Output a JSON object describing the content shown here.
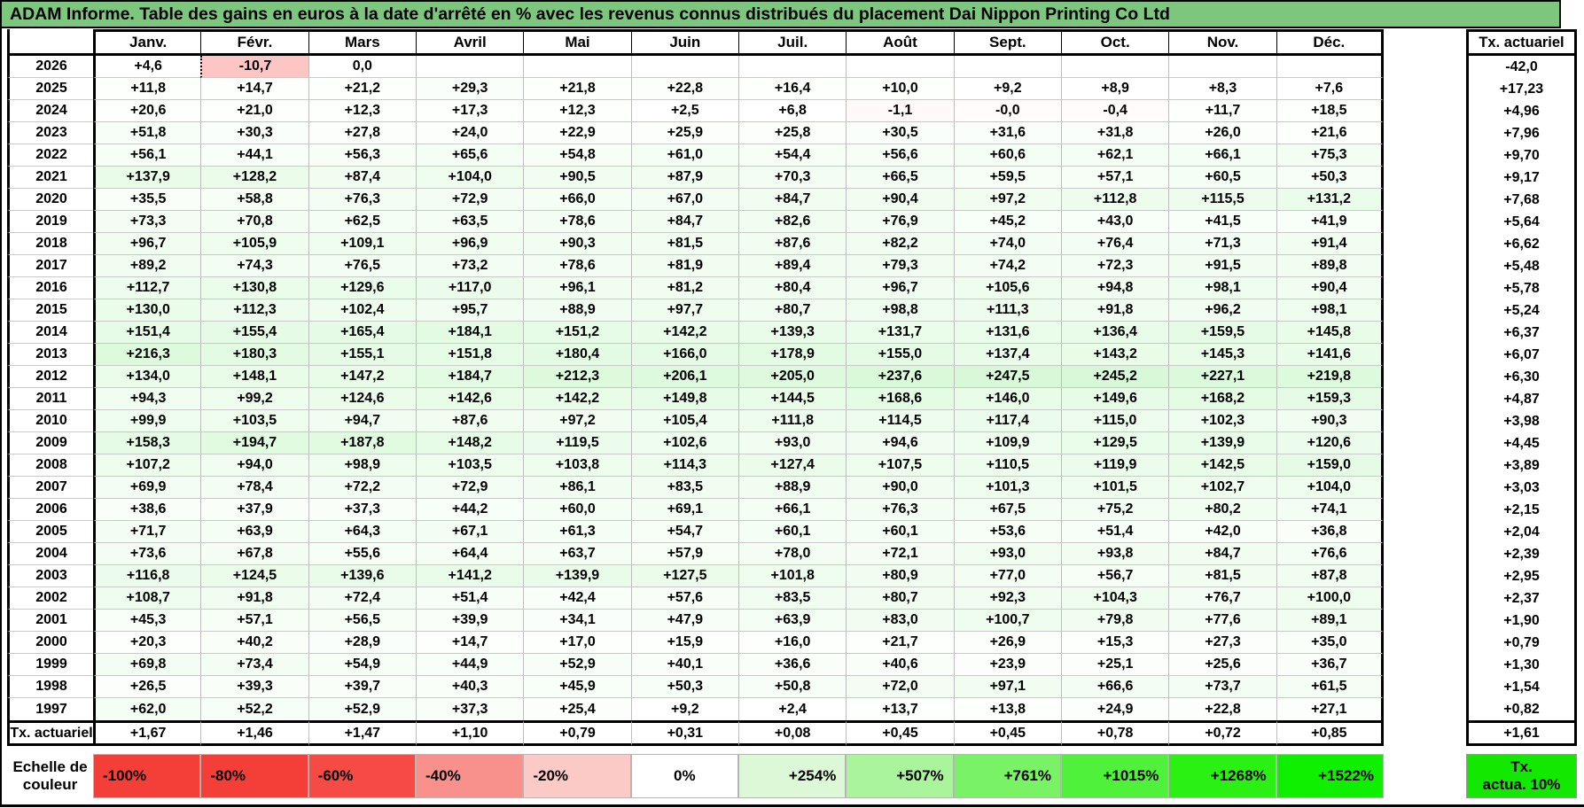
{
  "colors": {
    "title_bg": "#7dc67e",
    "thin_grid": "#c9c9c9"
  },
  "chart_data": {
    "type": "heatmap",
    "title": "ADAM Informe. Table des gains en euros à la date d'arrêté en % avec les revenus connus distribués du placement Dai Nippon Printing Co Ltd",
    "columns": [
      "Janv.",
      "Févr.",
      "Mars",
      "Avril",
      "Mai",
      "Juin",
      "Juil.",
      "Août",
      "Sept.",
      "Oct.",
      "Nov.",
      "Déc."
    ],
    "row_totals_label": "Tx. actuariel",
    "column_footer_label": "Tx. actuariel",
    "rows": [
      {
        "year": "2026",
        "values": [
          "+4,6",
          "-10,7",
          "0,0",
          "",
          "",
          "",
          "",
          "",
          "",
          "",
          "",
          ""
        ],
        "tx": "-42,0"
      },
      {
        "year": "2025",
        "values": [
          "+11,8",
          "+14,7",
          "+21,2",
          "+29,3",
          "+21,8",
          "+22,8",
          "+16,4",
          "+10,0",
          "+9,2",
          "+8,9",
          "+8,3",
          "+7,6"
        ],
        "tx": "+17,23"
      },
      {
        "year": "2024",
        "values": [
          "+20,6",
          "+21,0",
          "+12,3",
          "+17,3",
          "+12,3",
          "+2,5",
          "+6,8",
          "-1,1",
          "-0,0",
          "-0,4",
          "+11,7",
          "+18,5"
        ],
        "tx": "+4,96"
      },
      {
        "year": "2023",
        "values": [
          "+51,8",
          "+30,3",
          "+27,8",
          "+24,0",
          "+22,9",
          "+25,9",
          "+25,8",
          "+30,5",
          "+31,6",
          "+31,8",
          "+26,0",
          "+21,6"
        ],
        "tx": "+7,96"
      },
      {
        "year": "2022",
        "values": [
          "+56,1",
          "+44,1",
          "+56,3",
          "+65,6",
          "+54,8",
          "+61,0",
          "+54,4",
          "+56,6",
          "+60,6",
          "+62,1",
          "+66,1",
          "+75,3"
        ],
        "tx": "+9,70"
      },
      {
        "year": "2021",
        "values": [
          "+137,9",
          "+128,2",
          "+87,4",
          "+104,0",
          "+90,5",
          "+87,9",
          "+70,3",
          "+66,5",
          "+59,5",
          "+57,1",
          "+60,5",
          "+50,3"
        ],
        "tx": "+9,17"
      },
      {
        "year": "2020",
        "values": [
          "+35,5",
          "+58,8",
          "+76,3",
          "+72,9",
          "+66,0",
          "+67,0",
          "+84,7",
          "+90,4",
          "+97,2",
          "+112,8",
          "+115,5",
          "+131,2"
        ],
        "tx": "+7,68"
      },
      {
        "year": "2019",
        "values": [
          "+73,3",
          "+70,8",
          "+62,5",
          "+63,5",
          "+78,6",
          "+84,7",
          "+82,6",
          "+76,9",
          "+45,2",
          "+43,0",
          "+41,5",
          "+41,9"
        ],
        "tx": "+5,64"
      },
      {
        "year": "2018",
        "values": [
          "+96,7",
          "+105,9",
          "+109,1",
          "+96,9",
          "+90,3",
          "+81,5",
          "+87,6",
          "+82,2",
          "+74,0",
          "+76,4",
          "+71,3",
          "+91,4"
        ],
        "tx": "+6,62"
      },
      {
        "year": "2017",
        "values": [
          "+89,2",
          "+74,3",
          "+76,5",
          "+73,2",
          "+78,6",
          "+81,9",
          "+89,4",
          "+79,3",
          "+74,2",
          "+72,3",
          "+91,5",
          "+89,8"
        ],
        "tx": "+5,48"
      },
      {
        "year": "2016",
        "values": [
          "+112,7",
          "+130,8",
          "+129,6",
          "+117,0",
          "+96,1",
          "+81,2",
          "+80,4",
          "+96,7",
          "+105,6",
          "+94,8",
          "+98,1",
          "+90,4"
        ],
        "tx": "+5,78"
      },
      {
        "year": "2015",
        "values": [
          "+130,0",
          "+112,3",
          "+102,4",
          "+95,7",
          "+88,9",
          "+97,7",
          "+80,7",
          "+98,8",
          "+111,3",
          "+91,8",
          "+96,2",
          "+98,1"
        ],
        "tx": "+5,24"
      },
      {
        "year": "2014",
        "values": [
          "+151,4",
          "+155,4",
          "+165,4",
          "+184,1",
          "+151,2",
          "+142,2",
          "+139,3",
          "+131,7",
          "+131,6",
          "+136,4",
          "+159,5",
          "+145,8"
        ],
        "tx": "+6,37"
      },
      {
        "year": "2013",
        "values": [
          "+216,3",
          "+180,3",
          "+155,1",
          "+151,8",
          "+180,4",
          "+166,0",
          "+178,9",
          "+155,0",
          "+137,4",
          "+143,2",
          "+145,3",
          "+141,6"
        ],
        "tx": "+6,07"
      },
      {
        "year": "2012",
        "values": [
          "+134,0",
          "+148,1",
          "+147,2",
          "+184,7",
          "+212,3",
          "+206,1",
          "+205,0",
          "+237,6",
          "+247,5",
          "+245,2",
          "+227,1",
          "+219,8"
        ],
        "tx": "+6,30"
      },
      {
        "year": "2011",
        "values": [
          "+94,3",
          "+99,2",
          "+124,6",
          "+142,6",
          "+142,2",
          "+149,8",
          "+144,5",
          "+168,6",
          "+146,0",
          "+149,6",
          "+168,2",
          "+159,3"
        ],
        "tx": "+4,87"
      },
      {
        "year": "2010",
        "values": [
          "+99,9",
          "+103,5",
          "+94,7",
          "+87,6",
          "+97,2",
          "+105,4",
          "+111,8",
          "+114,5",
          "+117,4",
          "+115,0",
          "+102,3",
          "+90,3"
        ],
        "tx": "+3,98"
      },
      {
        "year": "2009",
        "values": [
          "+158,3",
          "+194,7",
          "+187,8",
          "+148,2",
          "+119,5",
          "+102,6",
          "+93,0",
          "+94,6",
          "+109,9",
          "+129,5",
          "+139,9",
          "+120,6"
        ],
        "tx": "+4,45"
      },
      {
        "year": "2008",
        "values": [
          "+107,2",
          "+94,0",
          "+98,9",
          "+103,5",
          "+103,8",
          "+114,3",
          "+127,4",
          "+107,5",
          "+110,5",
          "+119,9",
          "+142,5",
          "+159,0"
        ],
        "tx": "+3,89"
      },
      {
        "year": "2007",
        "values": [
          "+69,9",
          "+78,4",
          "+72,2",
          "+72,9",
          "+86,1",
          "+83,5",
          "+88,9",
          "+90,0",
          "+101,3",
          "+101,5",
          "+102,7",
          "+104,0"
        ],
        "tx": "+3,03"
      },
      {
        "year": "2006",
        "values": [
          "+38,6",
          "+37,9",
          "+37,3",
          "+44,2",
          "+60,0",
          "+69,1",
          "+66,1",
          "+76,3",
          "+67,5",
          "+75,2",
          "+80,2",
          "+74,1"
        ],
        "tx": "+2,15"
      },
      {
        "year": "2005",
        "values": [
          "+71,7",
          "+63,9",
          "+64,3",
          "+67,1",
          "+61,3",
          "+54,7",
          "+60,1",
          "+60,1",
          "+53,6",
          "+51,4",
          "+42,0",
          "+36,8"
        ],
        "tx": "+2,04"
      },
      {
        "year": "2004",
        "values": [
          "+73,6",
          "+67,8",
          "+55,6",
          "+64,4",
          "+63,7",
          "+57,9",
          "+78,0",
          "+72,1",
          "+93,0",
          "+93,8",
          "+84,7",
          "+76,6"
        ],
        "tx": "+2,39"
      },
      {
        "year": "2003",
        "values": [
          "+116,8",
          "+124,5",
          "+139,6",
          "+141,2",
          "+139,9",
          "+127,5",
          "+101,8",
          "+80,9",
          "+77,0",
          "+56,7",
          "+81,5",
          "+87,8"
        ],
        "tx": "+2,95"
      },
      {
        "year": "2002",
        "values": [
          "+108,7",
          "+91,8",
          "+72,4",
          "+51,4",
          "+42,4",
          "+57,6",
          "+83,5",
          "+80,7",
          "+92,3",
          "+104,3",
          "+76,7",
          "+100,0"
        ],
        "tx": "+2,37"
      },
      {
        "year": "2001",
        "values": [
          "+45,3",
          "+57,1",
          "+56,5",
          "+39,9",
          "+34,1",
          "+47,9",
          "+63,9",
          "+83,0",
          "+100,7",
          "+79,8",
          "+77,6",
          "+89,1"
        ],
        "tx": "+1,90"
      },
      {
        "year": "2000",
        "values": [
          "+20,3",
          "+40,2",
          "+28,9",
          "+14,7",
          "+17,0",
          "+15,9",
          "+16,0",
          "+21,7",
          "+26,9",
          "+15,3",
          "+27,3",
          "+35,0"
        ],
        "tx": "+0,79"
      },
      {
        "year": "1999",
        "values": [
          "+69,8",
          "+73,4",
          "+54,9",
          "+44,9",
          "+52,9",
          "+40,1",
          "+36,6",
          "+40,6",
          "+23,9",
          "+25,1",
          "+25,6",
          "+36,7"
        ],
        "tx": "+1,30"
      },
      {
        "year": "1998",
        "values": [
          "+26,5",
          "+39,3",
          "+39,7",
          "+40,3",
          "+45,9",
          "+50,3",
          "+50,8",
          "+72,0",
          "+97,1",
          "+66,6",
          "+73,7",
          "+61,5"
        ],
        "tx": "+1,54"
      },
      {
        "year": "1997",
        "values": [
          "+62,0",
          "+52,2",
          "+52,9",
          "+37,3",
          "+25,4",
          "+9,2",
          "+2,4",
          "+13,7",
          "+13,8",
          "+24,9",
          "+22,8",
          "+27,1"
        ],
        "tx": "+0,82"
      }
    ],
    "column_footer": [
      "+1,67",
      "+1,46",
      "+1,47",
      "+1,10",
      "+0,79",
      "+0,31",
      "+0,08",
      "+0,45",
      "+0,45",
      "+0,78",
      "+0,72",
      "+0,85"
    ],
    "footer_total": "+1,61",
    "color_scale": {
      "label_line1": "Echelle de",
      "label_line2": "couleur",
      "negative_domain": [
        -100,
        0
      ],
      "positive_domain": [
        0,
        1522
      ],
      "entries": [
        {
          "label": "-100%",
          "color": "#f43f38",
          "align": "left"
        },
        {
          "label": "-80%",
          "color": "#f43f38",
          "align": "left"
        },
        {
          "label": "-60%",
          "color": "#f54b44",
          "align": "left"
        },
        {
          "label": "-40%",
          "color": "#f8918c",
          "align": "left"
        },
        {
          "label": "-20%",
          "color": "#fbc9c6",
          "align": "left"
        },
        {
          "label": "0%",
          "color": "#ffffff",
          "align": "center"
        },
        {
          "label": "+254%",
          "color": "#dcf8d7",
          "align": "right"
        },
        {
          "label": "+507%",
          "color": "#aaf59b",
          "align": "right"
        },
        {
          "label": "+761%",
          "color": "#79f365",
          "align": "right"
        },
        {
          "label": "+1015%",
          "color": "#4ff13a",
          "align": "right"
        },
        {
          "label": "+1268%",
          "color": "#2af014",
          "align": "right"
        },
        {
          "label": "+1522%",
          "color": "#0fef00",
          "align": "right"
        }
      ],
      "tx_box_line1": "Tx.",
      "tx_box_line2": "actua. 10%",
      "tx_box_color": "#12e800"
    }
  }
}
